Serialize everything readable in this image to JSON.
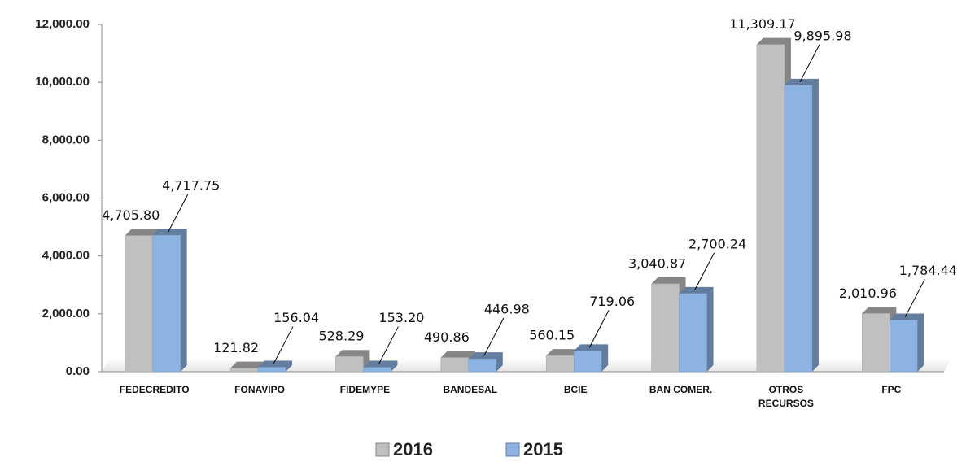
{
  "chart_data": {
    "type": "bar",
    "categories": [
      "FEDECREDITO",
      "FONAVIPO",
      "FIDEMYPE",
      "BANDESAL",
      "BCIE",
      "BAN COMER.",
      "OTROS RECURSOS",
      "FPC"
    ],
    "series": [
      {
        "name": "2016",
        "color": "#c0c0c0",
        "values": [
          4705.8,
          121.82,
          528.29,
          490.86,
          560.15,
          3040.87,
          11309.17,
          2010.96
        ],
        "value_labels": [
          "4,705.80",
          "121.82",
          "528.29",
          "490.86",
          "560.15",
          "3,040.87",
          "11,309.17",
          "2,010.96"
        ]
      },
      {
        "name": "2015",
        "color": "#8db3e2",
        "values": [
          4717.75,
          156.04,
          153.2,
          446.98,
          719.06,
          2700.24,
          9895.98,
          1784.44
        ],
        "value_labels": [
          "4,717.75",
          "156.04",
          "153.20",
          "446.98",
          "719.06",
          "2,700.24",
          "9,895.98",
          "1,784.44"
        ]
      }
    ],
    "ylim": [
      0,
      12000
    ],
    "yticks": [
      {
        "value": 0,
        "label": "0.00"
      },
      {
        "value": 2000,
        "label": "2,000.00"
      },
      {
        "value": 4000,
        "label": "4,000.00"
      },
      {
        "value": 6000,
        "label": "6,000.00"
      },
      {
        "value": 8000,
        "label": "8,000.00"
      },
      {
        "value": 10000,
        "label": "10,000.00"
      },
      {
        "value": 12000,
        "label": "12,000.00"
      }
    ],
    "legend": "bottom"
  }
}
